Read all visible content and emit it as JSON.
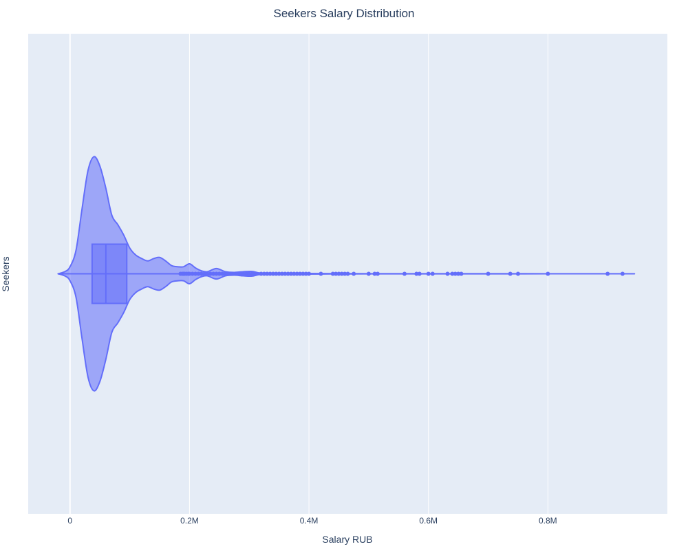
{
  "chart_data": {
    "type": "violin",
    "orientation": "horizontal",
    "title": "Seekers Salary Distribution",
    "xlabel": "Salary RUB",
    "ylabel": "Seekers",
    "category": "Seekers",
    "xlim": [
      -70000,
      1000000
    ],
    "x_ticks": [
      {
        "value": 0,
        "label": "0"
      },
      {
        "value": 200000,
        "label": "0.2M"
      },
      {
        "value": 400000,
        "label": "0.4M"
      },
      {
        "value": 600000,
        "label": "0.6M"
      },
      {
        "value": 800000,
        "label": "0.8M"
      }
    ],
    "grid": true,
    "background": "#e5ecf6",
    "color": "#636efa",
    "box": {
      "q1": 37000,
      "median": 60000,
      "q3": 95000,
      "whisker_low": 0,
      "whisker_high": 185000
    },
    "density_profile": [
      {
        "x": -20000,
        "d": 0.0
      },
      {
        "x": -8000,
        "d": 0.02
      },
      {
        "x": 0,
        "d": 0.06
      },
      {
        "x": 10000,
        "d": 0.2
      },
      {
        "x": 20000,
        "d": 0.55
      },
      {
        "x": 30000,
        "d": 0.88
      },
      {
        "x": 40000,
        "d": 1.0
      },
      {
        "x": 50000,
        "d": 0.92
      },
      {
        "x": 60000,
        "d": 0.73
      },
      {
        "x": 70000,
        "d": 0.5
      },
      {
        "x": 80000,
        "d": 0.42
      },
      {
        "x": 90000,
        "d": 0.33
      },
      {
        "x": 100000,
        "d": 0.22
      },
      {
        "x": 110000,
        "d": 0.16
      },
      {
        "x": 120000,
        "d": 0.13
      },
      {
        "x": 130000,
        "d": 0.11
      },
      {
        "x": 140000,
        "d": 0.13
      },
      {
        "x": 150000,
        "d": 0.14
      },
      {
        "x": 160000,
        "d": 0.11
      },
      {
        "x": 170000,
        "d": 0.07
      },
      {
        "x": 180000,
        "d": 0.06
      },
      {
        "x": 190000,
        "d": 0.06
      },
      {
        "x": 200000,
        "d": 0.085
      },
      {
        "x": 210000,
        "d": 0.05
      },
      {
        "x": 220000,
        "d": 0.025
      },
      {
        "x": 230000,
        "d": 0.018
      },
      {
        "x": 245000,
        "d": 0.045
      },
      {
        "x": 260000,
        "d": 0.018
      },
      {
        "x": 275000,
        "d": 0.012
      },
      {
        "x": 290000,
        "d": 0.018
      },
      {
        "x": 305000,
        "d": 0.02
      },
      {
        "x": 320000,
        "d": 0.006
      },
      {
        "x": 360000,
        "d": 0.004
      },
      {
        "x": 420000,
        "d": 0.002
      },
      {
        "x": 500000,
        "d": 0.001
      },
      {
        "x": 700000,
        "d": 0.0006
      },
      {
        "x": 945000,
        "d": 0.0
      }
    ],
    "outliers": [
      185000,
      188000,
      190000,
      192000,
      195000,
      198000,
      200000,
      205000,
      210000,
      215000,
      220000,
      225000,
      230000,
      235000,
      240000,
      245000,
      250000,
      255000,
      260000,
      265000,
      270000,
      275000,
      280000,
      285000,
      290000,
      295000,
      298000,
      300000,
      305000,
      310000,
      320000,
      325000,
      330000,
      335000,
      340000,
      345000,
      350000,
      355000,
      360000,
      365000,
      370000,
      375000,
      380000,
      385000,
      390000,
      395000,
      400000,
      420000,
      440000,
      445000,
      450000,
      455000,
      460000,
      465000,
      475000,
      500000,
      510000,
      515000,
      560000,
      580000,
      585000,
      600000,
      607000,
      632000,
      640000,
      645000,
      650000,
      655000,
      700000,
      737000,
      750000,
      800000,
      900000,
      925000
    ],
    "range": [
      -20000,
      945000
    ]
  }
}
